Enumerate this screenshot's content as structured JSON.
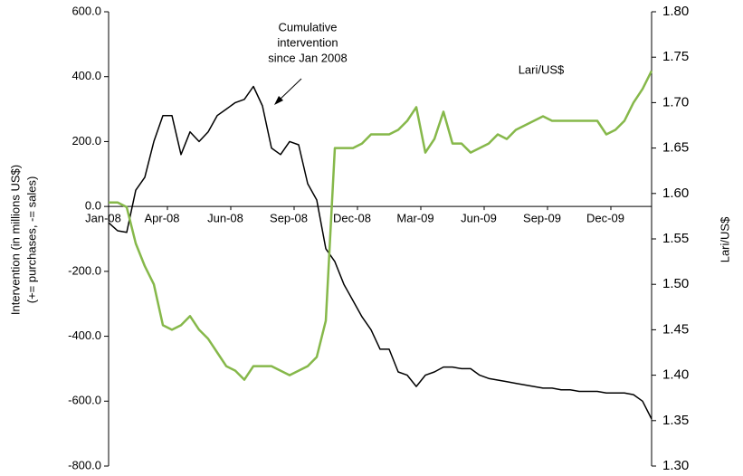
{
  "chart_data": {
    "type": "line",
    "annotations": [
      "Cumulative",
      "intervention",
      "since Jan 2008"
    ],
    "series_label": "Lari/US$",
    "ylabel": [
      "Intervention (in millions US$)",
      "(+= purchases, -= sales)"
    ],
    "y2label": "Lari/US$",
    "xlim": [
      0,
      60
    ],
    "xticks": [
      {
        "value": 0,
        "label": "Jan-08"
      },
      {
        "value": 6.5,
        "label": "Apr-08"
      },
      {
        "value": 13.5,
        "label": "Jun-08"
      },
      {
        "value": 20.5,
        "label": "Sep-08"
      },
      {
        "value": 27.5,
        "label": "Dec-08"
      },
      {
        "value": 34.5,
        "label": "Mar-09"
      },
      {
        "value": 41.5,
        "label": "Jun-09"
      },
      {
        "value": 48.5,
        "label": "Sep-09"
      },
      {
        "value": 55.5,
        "label": "Dec-09"
      }
    ],
    "ylim": [
      -800,
      600
    ],
    "yticks": [
      {
        "value": -800,
        "label": "-800.0"
      },
      {
        "value": -600,
        "label": "-600.0"
      },
      {
        "value": -400,
        "label": "-400.0"
      },
      {
        "value": -200,
        "label": "-200.0"
      },
      {
        "value": 0,
        "label": "0.0"
      },
      {
        "value": 200,
        "label": "200.0"
      },
      {
        "value": 400,
        "label": "400.0"
      },
      {
        "value": 600,
        "label": "600.0"
      }
    ],
    "y2lim": [
      1.3,
      1.8
    ],
    "y2ticks": [
      {
        "value": 1.3,
        "label": "1.30"
      },
      {
        "value": 1.35,
        "label": "1.35"
      },
      {
        "value": 1.4,
        "label": "1.40"
      },
      {
        "value": 1.45,
        "label": "1.45"
      },
      {
        "value": 1.5,
        "label": "1.50"
      },
      {
        "value": 1.55,
        "label": "1.55"
      },
      {
        "value": 1.6,
        "label": "1.60"
      },
      {
        "value": 1.65,
        "label": "1.65"
      },
      {
        "value": 1.7,
        "label": "1.70"
      },
      {
        "value": 1.75,
        "label": "1.75"
      },
      {
        "value": 1.8,
        "label": "1.80"
      }
    ],
    "series": [
      {
        "color": "#000000",
        "axis": "y",
        "values": [
          -50,
          -75,
          -80,
          50,
          90,
          200,
          280,
          280,
          160,
          230,
          200,
          230,
          280,
          300,
          320,
          330,
          370,
          310,
          180,
          160,
          200,
          190,
          70,
          20,
          -130,
          -170,
          -240,
          -290,
          -340,
          -380,
          -440,
          -440,
          -510,
          -520,
          -555,
          -520,
          -510,
          -495,
          -495,
          -500,
          -500,
          -520,
          -530,
          -535,
          -540,
          -545,
          -550,
          -555,
          -560,
          -560,
          -565,
          -565,
          -570,
          -570,
          -570,
          -575,
          -575,
          -575,
          -580,
          -600,
          -655
        ]
      },
      {
        "color": "#86b84a",
        "axis": "y2",
        "values": [
          1.59,
          1.59,
          1.585,
          1.545,
          1.52,
          1.5,
          1.455,
          1.45,
          1.455,
          1.465,
          1.45,
          1.44,
          1.425,
          1.41,
          1.405,
          1.395,
          1.41,
          1.41,
          1.41,
          1.405,
          1.4,
          1.405,
          1.41,
          1.42,
          1.46,
          1.65,
          1.65,
          1.65,
          1.655,
          1.665,
          1.665,
          1.665,
          1.67,
          1.68,
          1.695,
          1.645,
          1.66,
          1.69,
          1.655,
          1.655,
          1.645,
          1.65,
          1.655,
          1.665,
          1.66,
          1.67,
          1.675,
          1.68,
          1.685,
          1.68,
          1.68,
          1.68,
          1.68,
          1.68,
          1.68,
          1.665,
          1.67,
          1.68,
          1.7,
          1.715,
          1.735
        ]
      }
    ]
  }
}
